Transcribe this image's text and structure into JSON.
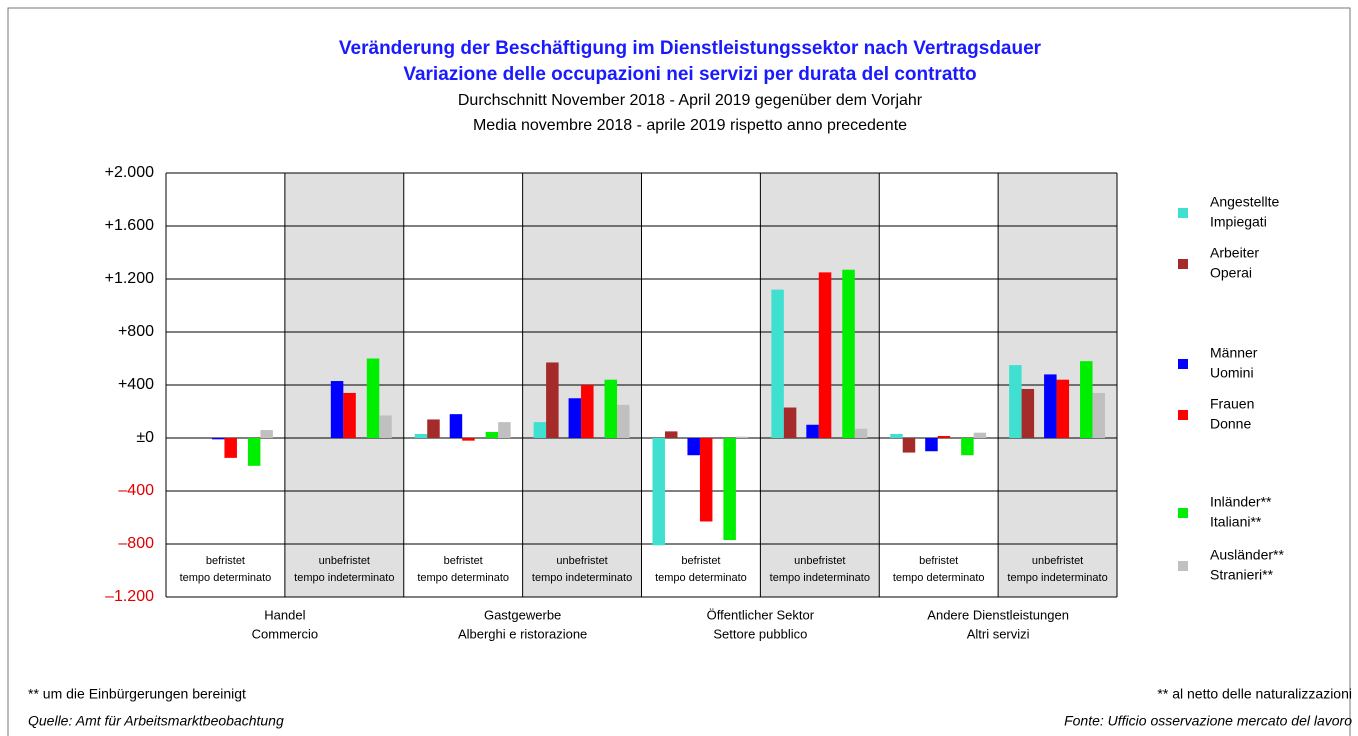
{
  "chart_data": {
    "type": "bar",
    "title": [
      "Veränderung der Beschäftigung im Dienstleistungssektor nach Vertragsdauer",
      "Variazione delle occupazioni nei servizi per durata del contratto"
    ],
    "subtitle": [
      "Durchschnitt November 2018 - April 2019 gegenüber dem Vorjahr",
      "Media novembre 2018 - aprile 2019 rispetto anno precedente"
    ],
    "groups": [
      [
        "Handel",
        "Commercio"
      ],
      [
        "Gastgewerbe",
        "Alberghi e ristorazione"
      ],
      [
        "Öffentlicher Sektor",
        "Settore pubblico"
      ],
      [
        "Andere Dienstleistungen",
        "Altri servizi"
      ]
    ],
    "subcategories": [
      [
        "befristet",
        "tempo determinato"
      ],
      [
        "unbefristet",
        "tempo indeterminato"
      ]
    ],
    "series": [
      {
        "name": [
          "Angestellte",
          "Impiegati"
        ],
        "color": "#40e0d0",
        "values": [
          0,
          0,
          30,
          120,
          -810,
          1120,
          30,
          550
        ]
      },
      {
        "name": [
          "Arbeiter",
          "Operai"
        ],
        "color": "#a52a2a",
        "values": [
          0,
          0,
          140,
          570,
          50,
          230,
          -110,
          370
        ]
      },
      {
        "name": [
          "Männer",
          "Uomini"
        ],
        "color": "#0000ff",
        "values": [
          -10,
          430,
          180,
          300,
          -130,
          100,
          -100,
          480
        ]
      },
      {
        "name": [
          "Frauen",
          "Donne"
        ],
        "color": "#ff0000",
        "values": [
          -150,
          340,
          -20,
          400,
          -630,
          1250,
          15,
          440
        ]
      },
      {
        "name": [
          "Inländer**",
          "Italiani**"
        ],
        "color": "#00ee00",
        "values": [
          -210,
          600,
          45,
          440,
          -770,
          1270,
          -130,
          580
        ]
      },
      {
        "name": [
          "Ausländer**",
          "Stranieri**"
        ],
        "color": "#c0c0c0",
        "values": [
          60,
          170,
          120,
          250,
          10,
          70,
          40,
          340
        ]
      }
    ],
    "ylim": [
      -1200,
      2000
    ],
    "yticks": [
      {
        "value": 2000,
        "label": "+2.000"
      },
      {
        "value": 1600,
        "label": "+1.600"
      },
      {
        "value": 1200,
        "label": "+1.200"
      },
      {
        "value": 800,
        "label": "+800"
      },
      {
        "value": 400,
        "label": "+400"
      },
      {
        "value": 0,
        "label": "±0"
      },
      {
        "value": -400,
        "label": "–400"
      },
      {
        "value": -800,
        "label": "–800"
      },
      {
        "value": -1200,
        "label": "–1.200"
      }
    ],
    "negative_tick_color": "#e00000",
    "shaded_color": "#e0e0e0",
    "grid": true,
    "footnotes_left": [
      "** um die Einbürgerungen bereinigt",
      "Quelle: Amt für Arbeitsmarktbeobachtung"
    ],
    "footnotes_right": [
      "** al netto delle naturalizzazioni",
      "Fonte: Ufficio osservazione mercato del lavoro"
    ]
  }
}
